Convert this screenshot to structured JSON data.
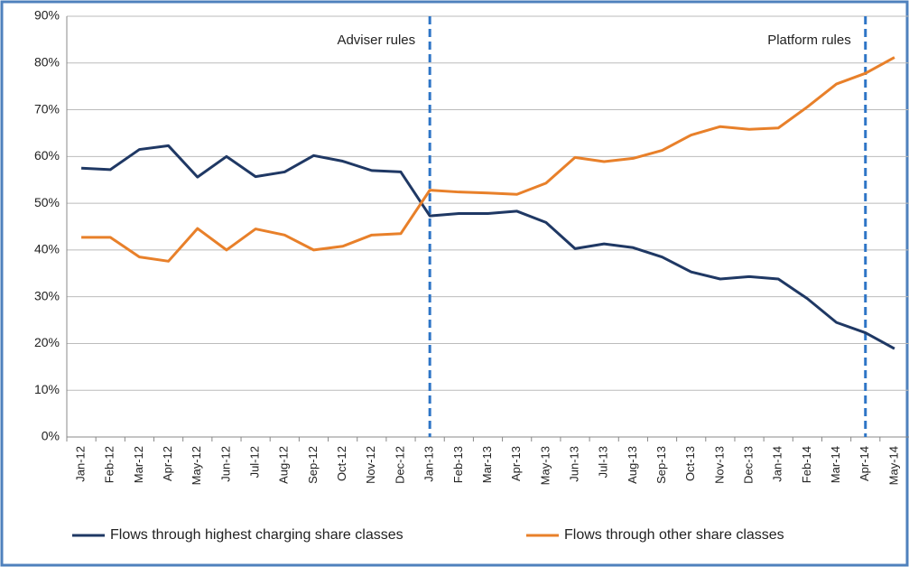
{
  "chart_data": {
    "type": "line",
    "categories": [
      "Jan-12",
      "Feb-12",
      "Mar-12",
      "Apr-12",
      "May-12",
      "Jun-12",
      "Jul-12",
      "Aug-12",
      "Sep-12",
      "Oct-12",
      "Nov-12",
      "Dec-12",
      "Jan-13",
      "Feb-13",
      "Mar-13",
      "Apr-13",
      "May-13",
      "Jun-13",
      "Jul-13",
      "Aug-13",
      "Sep-13",
      "Oct-13",
      "Nov-13",
      "Dec-13",
      "Jan-14",
      "Feb-14",
      "Mar-14",
      "Apr-14",
      "May-14"
    ],
    "series": [
      {
        "name": "Flows through highest charging share classes",
        "color": "#1f3864",
        "values": [
          57.5,
          57.2,
          61.5,
          62.3,
          55.6,
          60,
          55.7,
          56.7,
          60.2,
          59,
          57,
          56.7,
          47.3,
          47.8,
          47.8,
          48.3,
          45.9,
          40.3,
          41.3,
          40.5,
          38.5,
          35.3,
          33.8,
          34.3,
          33.8,
          29.6,
          24.5,
          22.3,
          18.9
        ]
      },
      {
        "name": "Flows through other share classes",
        "color": "#e8802a",
        "values": [
          42.7,
          42.7,
          38.5,
          37.6,
          44.6,
          40,
          44.5,
          43.2,
          40,
          40.8,
          43.2,
          43.5,
          52.8,
          52.4,
          52.2,
          51.9,
          54.3,
          59.8,
          58.9,
          59.6,
          61.3,
          64.6,
          66.4,
          65.8,
          66.1,
          70.6,
          75.5,
          77.8,
          81.2
        ]
      }
    ],
    "ylim": [
      0,
      90
    ],
    "yticks": [
      {
        "value": 0,
        "label": "0%"
      },
      {
        "value": 10,
        "label": "10%"
      },
      {
        "value": 20,
        "label": "20%"
      },
      {
        "value": 30,
        "label": "30%"
      },
      {
        "value": 40,
        "label": "40%"
      },
      {
        "value": 50,
        "label": "50%"
      },
      {
        "value": 60,
        "label": "60%"
      },
      {
        "value": 70,
        "label": "70%"
      },
      {
        "value": 80,
        "label": "80%"
      },
      {
        "value": 90,
        "label": "90%"
      }
    ],
    "grid": true,
    "annotations": [
      {
        "text": "Adviser rules",
        "category": "Jan-13"
      },
      {
        "text": "Platform rules",
        "category": "Apr-14"
      }
    ],
    "legend": "bottom"
  }
}
